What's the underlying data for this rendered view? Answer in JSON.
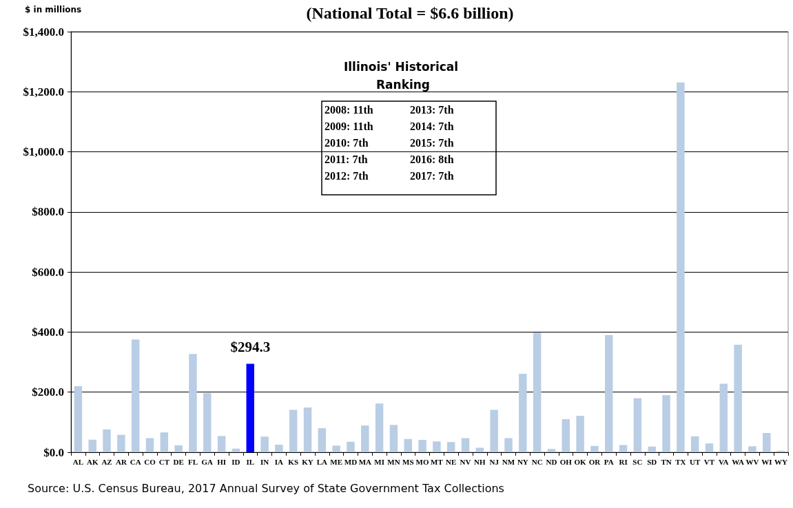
{
  "chart_data": {
    "type": "bar",
    "title": "(National Total = $6.6 billion)",
    "ylabel": "$ in millions",
    "categories": [
      "AL",
      "AK",
      "AZ",
      "AR",
      "CA",
      "CO",
      "CT",
      "DE",
      "FL",
      "GA",
      "HI",
      "ID",
      "IL",
      "IN",
      "IA",
      "KS",
      "KY",
      "LA",
      "ME",
      "MD",
      "MA",
      "MI",
      "MN",
      "MS",
      "MO",
      "MT",
      "NE",
      "NV",
      "NH",
      "NJ",
      "NM",
      "NY",
      "NC",
      "ND",
      "OH",
      "OK",
      "OR",
      "PA",
      "RI",
      "SC",
      "SD",
      "TN",
      "TX",
      "UT",
      "VT",
      "VA",
      "WA",
      "WV",
      "WI",
      "WY"
    ],
    "values": [
      220,
      42,
      76,
      58,
      375,
      47,
      66,
      23,
      327,
      197,
      54,
      12,
      294.3,
      52,
      25,
      141,
      149,
      80,
      22,
      35,
      89,
      162,
      91,
      44,
      41,
      36,
      34,
      47,
      15,
      141,
      47,
      261,
      398,
      11,
      110,
      121,
      21,
      390,
      24,
      180,
      19,
      190,
      1231,
      53,
      29,
      228,
      358,
      20,
      64,
      5
    ],
    "colors": [
      "#b9cde5",
      "#b9cde5",
      "#b9cde5",
      "#b9cde5",
      "#b9cde5",
      "#b9cde5",
      "#b9cde5",
      "#b9cde5",
      "#b9cde5",
      "#b9cde5",
      "#b9cde5",
      "#b9cde5",
      "#0000ff",
      "#b9cde5",
      "#b9cde5",
      "#b9cde5",
      "#b9cde5",
      "#b9cde5",
      "#b9cde5",
      "#b9cde5",
      "#b9cde5",
      "#b9cde5",
      "#b9cde5",
      "#b9cde5",
      "#b9cde5",
      "#b9cde5",
      "#b9cde5",
      "#b9cde5",
      "#b9cde5",
      "#b9cde5",
      "#b9cde5",
      "#b9cde5",
      "#b9cde5",
      "#b9cde5",
      "#b9cde5",
      "#b9cde5",
      "#b9cde5",
      "#b9cde5",
      "#b9cde5",
      "#b9cde5",
      "#b9cde5",
      "#b9cde5",
      "#b9cde5",
      "#b9cde5",
      "#b9cde5",
      "#b9cde5",
      "#b9cde5",
      "#b9cde5",
      "#b9cde5",
      "#b9cde5"
    ],
    "value_labels": [
      null,
      null,
      null,
      null,
      null,
      null,
      null,
      null,
      null,
      null,
      null,
      null,
      "$294.3",
      null,
      null,
      null,
      null,
      null,
      null,
      null,
      null,
      null,
      null,
      null,
      null,
      null,
      null,
      null,
      null,
      null,
      null,
      null,
      null,
      null,
      null,
      null,
      null,
      null,
      null,
      null,
      null,
      null,
      null,
      null,
      null,
      null,
      null,
      null,
      null,
      null
    ],
    "ylim": [
      0,
      1400
    ],
    "yticks": [
      {
        "value": 0,
        "label": "$0.0"
      },
      {
        "value": 200,
        "label": "$200.0"
      },
      {
        "value": 400,
        "label": "$400.0"
      },
      {
        "value": 600,
        "label": "$600.0"
      },
      {
        "value": 800,
        "label": "$800.0"
      },
      {
        "value": 1000,
        "label": "$1,000.0"
      },
      {
        "value": 1200,
        "label": "$1,200.0"
      },
      {
        "value": 1400,
        "label": "$1,400.0"
      }
    ],
    "grid": "y",
    "annotations": [
      "Illinois' Historical Ranking",
      "2008: 11th",
      "2009: 11th",
      "2010: 7th",
      "2011: 7th",
      "2012: 7th",
      "2013: 7th",
      "2014: 7th",
      "2015: 7th",
      "2016: 8th",
      "2017: 7th",
      "Source: U.S. Census Bureau, 2017 Annual Survey of State Government Tax Collections"
    ]
  }
}
